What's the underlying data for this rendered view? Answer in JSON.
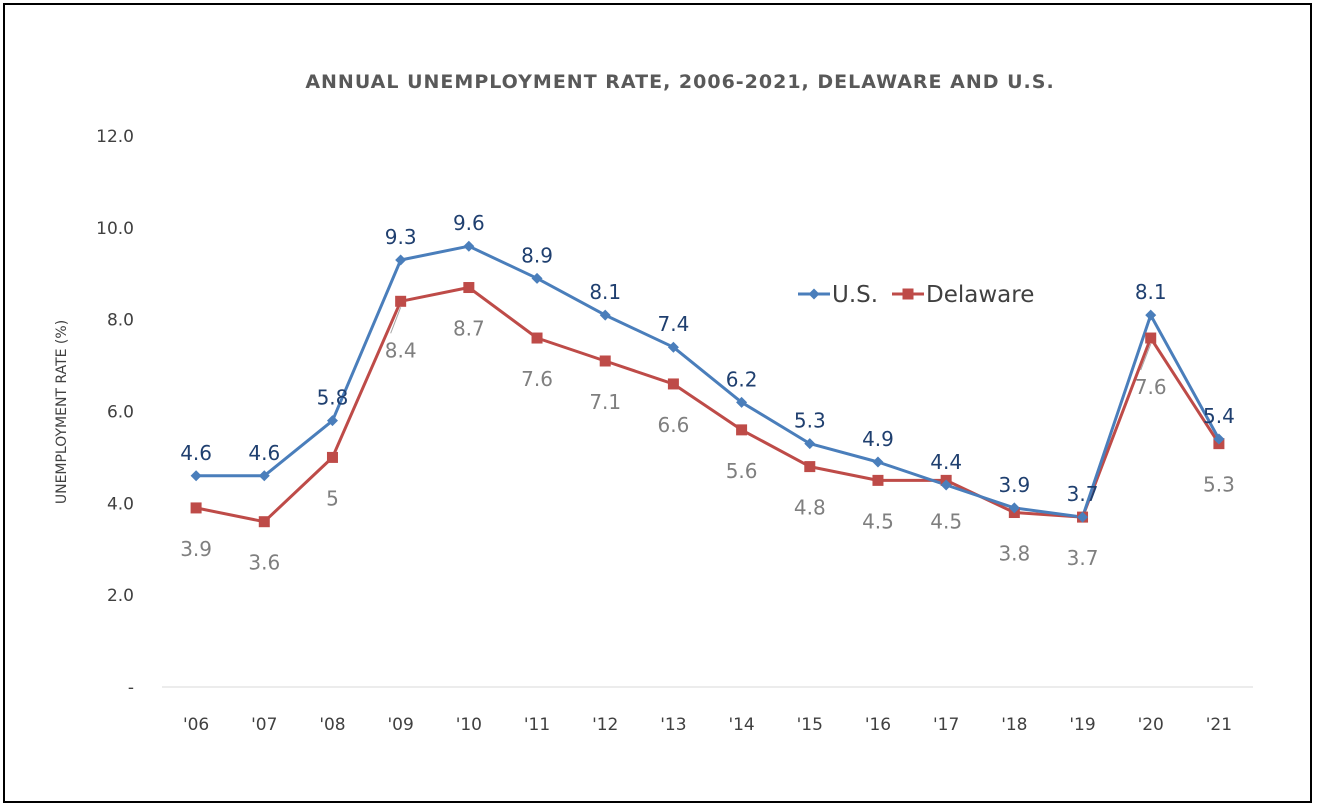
{
  "chart_data": {
    "type": "line",
    "title": "ANNUAL UNEMPLOYMENT RATE, 2006-2021, DELAWARE AND U.S.",
    "ylabel": "UNEMPLOYMENT RATE (%)",
    "xlabel": "",
    "categories": [
      "'06",
      "'07",
      "'08",
      "'09",
      "'10",
      "'11",
      "'12",
      "'13",
      "'14",
      "'15",
      "'16",
      "'17",
      "'18",
      "'19",
      "'20",
      "'21"
    ],
    "ylim": [
      0,
      12
    ],
    "yticks": [
      0,
      2,
      4,
      6,
      8,
      10,
      12
    ],
    "ytick_labels": [
      "-",
      "2.0",
      "4.0",
      "6.0",
      "8.0",
      "10.0",
      "12.0"
    ],
    "grid": false,
    "legend_position": "top-right",
    "series": [
      {
        "name": "U.S.",
        "color": "#4a7ebb",
        "marker": "diamond",
        "label_color": "#1f3f6f",
        "values": [
          4.6,
          4.6,
          5.8,
          9.3,
          9.6,
          8.9,
          8.1,
          7.4,
          6.2,
          5.3,
          4.9,
          4.4,
          3.9,
          3.7,
          8.1,
          5.4
        ],
        "labels": [
          "4.6",
          "4.6",
          "5.8",
          "9.3",
          "9.6",
          "8.9",
          "8.1",
          "7.4",
          "6.2",
          "5.3",
          "4.9",
          "4.4",
          "3.9",
          "3.7",
          "8.1",
          "5.4"
        ]
      },
      {
        "name": "Delaware",
        "color": "#be4b48",
        "marker": "square",
        "label_color": "#7f7f7f",
        "values": [
          3.9,
          3.6,
          5.0,
          8.4,
          8.7,
          7.6,
          7.1,
          6.6,
          5.6,
          4.8,
          4.5,
          4.5,
          3.8,
          3.7,
          7.6,
          5.3
        ],
        "labels": [
          "3.9",
          "3.6",
          "5",
          "8.4",
          "8.7",
          "7.6",
          "7.1",
          "6.6",
          "5.6",
          "4.8",
          "4.5",
          "4.5",
          "3.8",
          "3.7",
          "7.6",
          "5.3"
        ]
      }
    ]
  }
}
